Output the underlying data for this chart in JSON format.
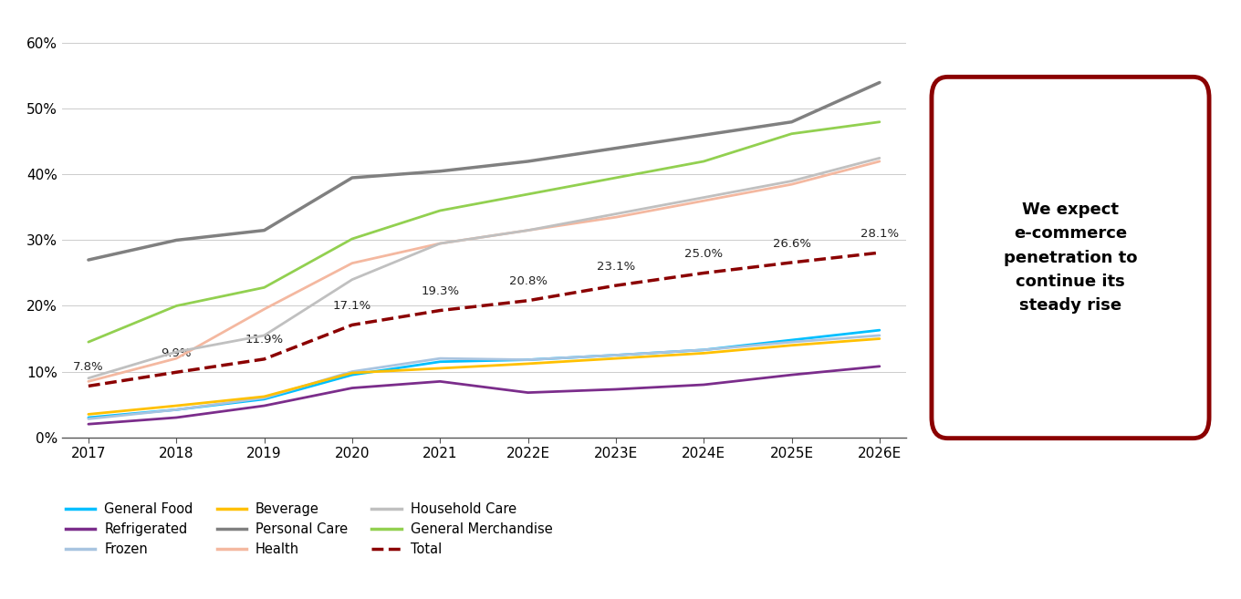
{
  "x_labels": [
    "2017",
    "2018",
    "2019",
    "2020",
    "2021",
    "2022E",
    "2023E",
    "2024E",
    "2025E",
    "2026E"
  ],
  "x_values": [
    0,
    1,
    2,
    3,
    4,
    5,
    6,
    7,
    8,
    9
  ],
  "series": {
    "General Food": {
      "color": "#00BFFF",
      "values": [
        0.03,
        0.042,
        0.058,
        0.095,
        0.115,
        0.118,
        0.125,
        0.133,
        0.148,
        0.163
      ],
      "linestyle": "-",
      "linewidth": 2.0,
      "zorder": 4
    },
    "Refrigerated": {
      "color": "#7B2D8B",
      "values": [
        0.02,
        0.03,
        0.048,
        0.075,
        0.085,
        0.068,
        0.073,
        0.08,
        0.095,
        0.108
      ],
      "linestyle": "-",
      "linewidth": 2.0,
      "zorder": 4
    },
    "Frozen": {
      "color": "#A8C4E0",
      "values": [
        0.028,
        0.042,
        0.06,
        0.1,
        0.12,
        0.118,
        0.125,
        0.133,
        0.145,
        0.155
      ],
      "linestyle": "-",
      "linewidth": 2.0,
      "zorder": 4
    },
    "Beverage": {
      "color": "#FFC000",
      "values": [
        0.035,
        0.048,
        0.062,
        0.098,
        0.105,
        0.112,
        0.12,
        0.128,
        0.14,
        0.15
      ],
      "linestyle": "-",
      "linewidth": 2.0,
      "zorder": 4
    },
    "Personal Care": {
      "color": "#808080",
      "values": [
        0.27,
        0.3,
        0.315,
        0.395,
        0.405,
        0.42,
        0.44,
        0.46,
        0.48,
        0.54
      ],
      "linestyle": "-",
      "linewidth": 2.5,
      "zorder": 4
    },
    "Health": {
      "color": "#F4B8A0",
      "values": [
        0.085,
        0.12,
        0.195,
        0.265,
        0.295,
        0.315,
        0.335,
        0.36,
        0.385,
        0.42
      ],
      "linestyle": "-",
      "linewidth": 2.0,
      "zorder": 4
    },
    "Household Care": {
      "color": "#C0C0C0",
      "values": [
        0.09,
        0.13,
        0.155,
        0.24,
        0.295,
        0.315,
        0.34,
        0.365,
        0.39,
        0.425
      ],
      "linestyle": "-",
      "linewidth": 2.0,
      "zorder": 4
    },
    "General Merchandise": {
      "color": "#92D050",
      "values": [
        0.145,
        0.2,
        0.228,
        0.302,
        0.345,
        0.37,
        0.395,
        0.42,
        0.462,
        0.48
      ],
      "linestyle": "-",
      "linewidth": 2.0,
      "zorder": 4
    },
    "Total": {
      "color": "#8B0000",
      "values": [
        0.078,
        0.099,
        0.119,
        0.171,
        0.193,
        0.208,
        0.231,
        0.25,
        0.266,
        0.281
      ],
      "linestyle": "--",
      "linewidth": 2.5,
      "zorder": 5
    }
  },
  "total_labels": [
    "7.8%",
    "9.9%",
    "11.9%",
    "17.1%",
    "19.3%",
    "20.8%",
    "23.1%",
    "25.0%",
    "26.6%",
    "28.1%"
  ],
  "ylim": [
    0,
    0.62
  ],
  "yticks": [
    0,
    0.1,
    0.2,
    0.3,
    0.4,
    0.5,
    0.6
  ],
  "ytick_labels": [
    "0%",
    "10%",
    "20%",
    "30%",
    "40%",
    "50%",
    "60%"
  ],
  "annotation_text": "We expect\ne-commerce\npenetration to\ncontinue its\nsteady rise",
  "annotation_box_color": "#8B0000",
  "background_color": "#FFFFFF",
  "legend_rows": [
    [
      "General Food",
      "Refrigerated",
      "Frozen"
    ],
    [
      "Beverage",
      "Personal Care",
      "Health"
    ],
    [
      "Household Care",
      "General Merchandise",
      "Total"
    ]
  ]
}
